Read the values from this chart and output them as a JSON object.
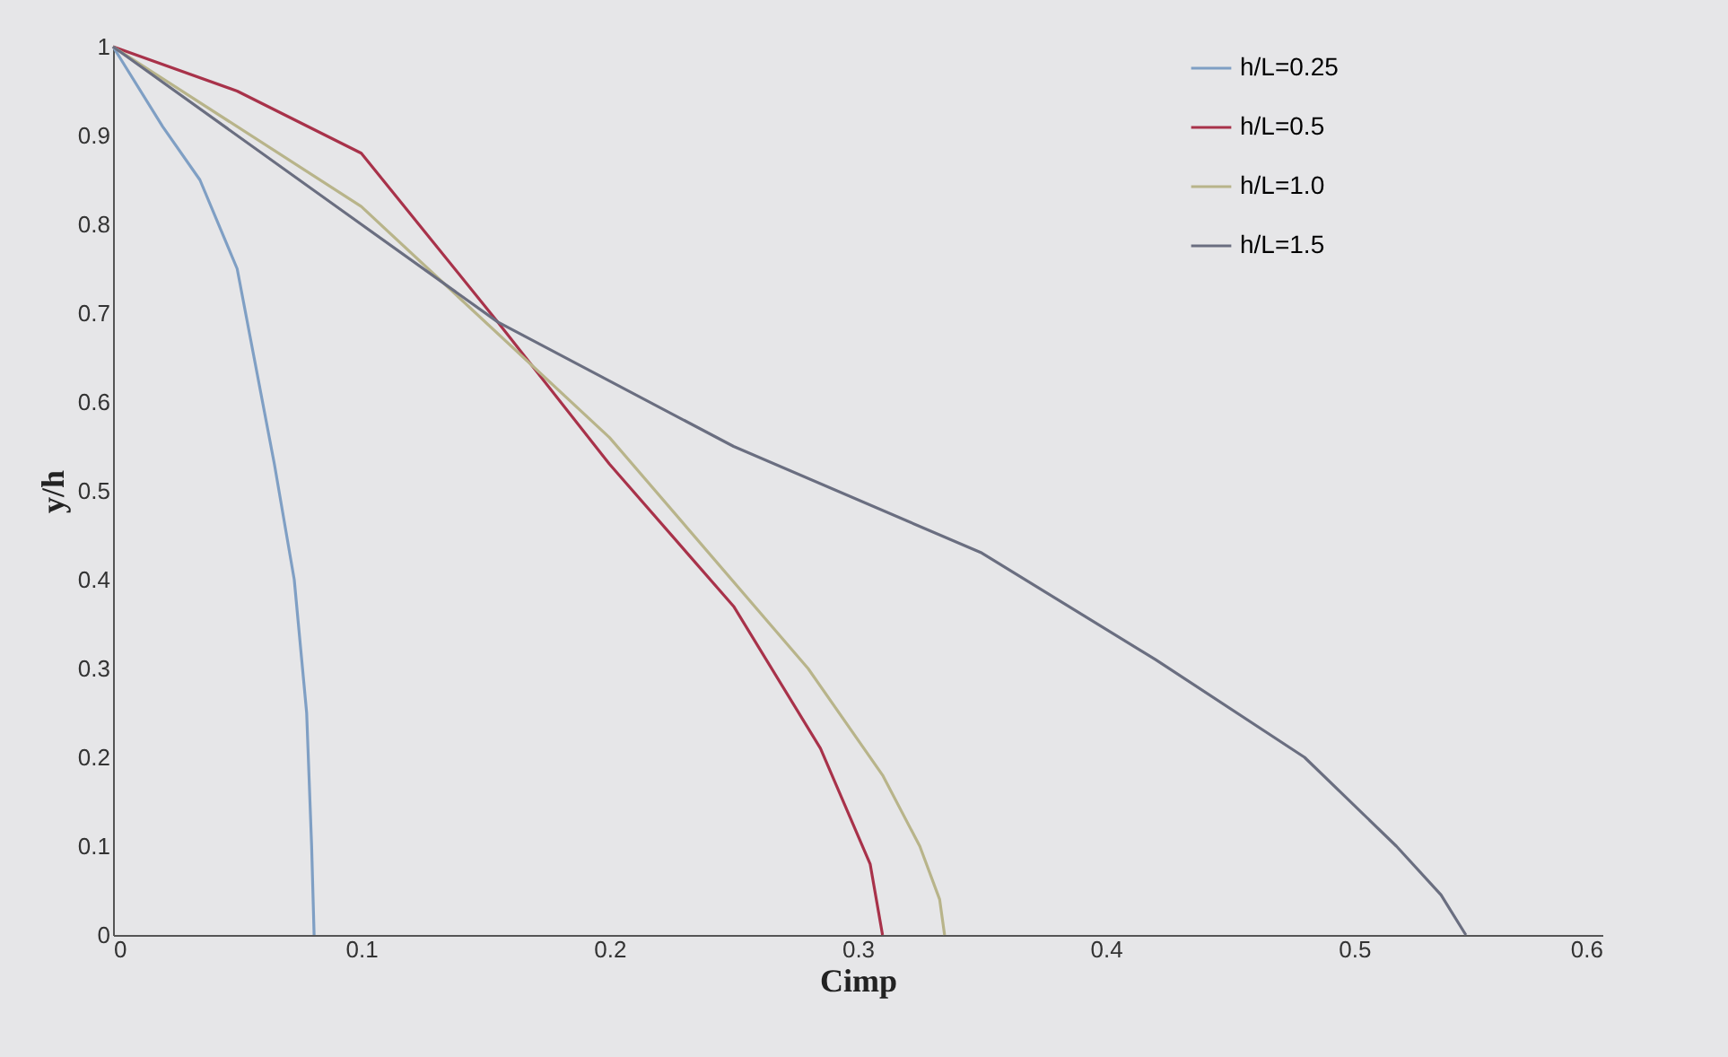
{
  "chart_data": {
    "type": "line",
    "xlabel": "Cimp",
    "ylabel": "y/h",
    "xlim": [
      0,
      0.6
    ],
    "xticks": [
      0,
      0.1,
      0.2,
      0.3,
      0.4,
      0.5,
      0.6
    ],
    "ylim": [
      0,
      1
    ],
    "yticks": [
      0,
      0.1,
      0.2,
      0.3,
      0.4,
      0.5,
      0.6,
      0.7,
      0.8,
      0.9,
      1
    ],
    "grid": false,
    "legend": "top right",
    "marker": "none",
    "line_style": "solid",
    "series": [
      {
        "name": "h/L=0.25",
        "color": "#7f9fc4",
        "x": [
          0,
          0.02,
          0.035,
          0.05,
          0.065,
          0.073,
          0.078,
          0.08,
          0.081
        ],
        "values": [
          1,
          0.91,
          0.85,
          0.75,
          0.53,
          0.4,
          0.25,
          0.1,
          0
        ]
      },
      {
        "name": "h/L=0.5",
        "color": "#a8324a",
        "x": [
          0,
          0.05,
          0.1,
          0.155,
          0.2,
          0.25,
          0.285,
          0.305,
          0.31
        ],
        "values": [
          1,
          0.95,
          0.88,
          0.69,
          0.53,
          0.37,
          0.21,
          0.08,
          0
        ]
      },
      {
        "name": "h/L=1.0",
        "color": "#b8b48a",
        "x": [
          0,
          0.1,
          0.2,
          0.28,
          0.31,
          0.325,
          0.333,
          0.335
        ],
        "values": [
          1,
          0.82,
          0.56,
          0.3,
          0.18,
          0.1,
          0.04,
          0
        ]
      },
      {
        "name": "h/L=1.5",
        "color": "#6a6e80",
        "x": [
          0,
          0.1,
          0.155,
          0.25,
          0.35,
          0.42,
          0.48,
          0.517,
          0.535,
          0.545
        ],
        "values": [
          1,
          0.8,
          0.69,
          0.55,
          0.43,
          0.31,
          0.2,
          0.1,
          0.045,
          0
        ]
      }
    ]
  }
}
